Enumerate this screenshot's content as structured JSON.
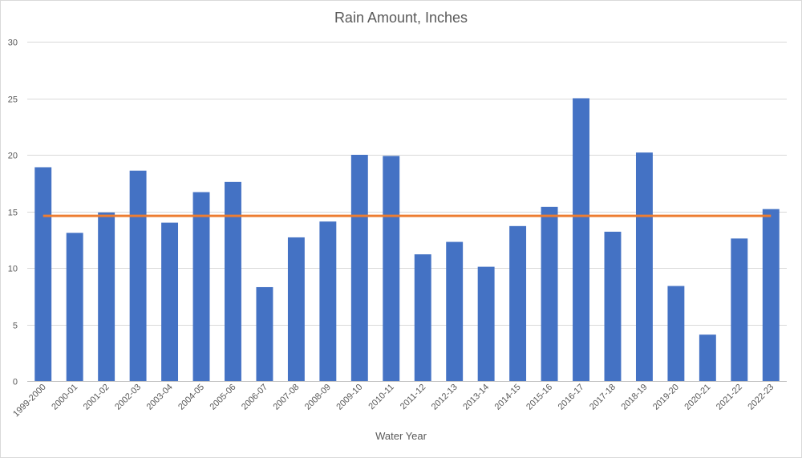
{
  "chart_data": {
    "type": "bar",
    "title": "Rain Amount, Inches",
    "xlabel": "Water Year",
    "ylabel": "",
    "ylim": [
      0,
      30
    ],
    "yticks": [
      "0",
      "5",
      "10",
      "15",
      "20",
      "25",
      "30"
    ],
    "grid": true,
    "categories": [
      "1999-2000",
      "2000-01",
      "2001-02",
      "2002-03",
      "2003-04",
      "2004-05",
      "2005-06",
      "2006-07",
      "2007-08",
      "2008-09",
      "2009-10",
      "2010-11",
      "2011-12",
      "2012-13",
      "2013-14",
      "2014-15",
      "2015-16",
      "2016-17",
      "2017-18",
      "2018-19",
      "2019-20",
      "2020-21",
      "2021-22",
      "2022-23"
    ],
    "series": [
      {
        "type": "bar",
        "color": "#4472C4",
        "values": [
          18.9,
          13.1,
          14.9,
          18.6,
          14.0,
          16.7,
          17.6,
          8.3,
          12.7,
          14.1,
          20.0,
          19.9,
          11.2,
          12.3,
          10.1,
          13.7,
          15.4,
          25.0,
          13.2,
          20.2,
          8.4,
          4.1,
          12.6,
          15.2
        ]
      },
      {
        "type": "line",
        "color": "#ED7D31",
        "values": [
          14.6,
          14.6,
          14.6,
          14.6,
          14.6,
          14.6,
          14.6,
          14.6,
          14.6,
          14.6,
          14.6,
          14.6,
          14.6,
          14.6,
          14.6,
          14.6,
          14.6,
          14.6,
          14.6,
          14.6,
          14.6,
          14.6,
          14.6,
          14.6
        ]
      }
    ]
  }
}
